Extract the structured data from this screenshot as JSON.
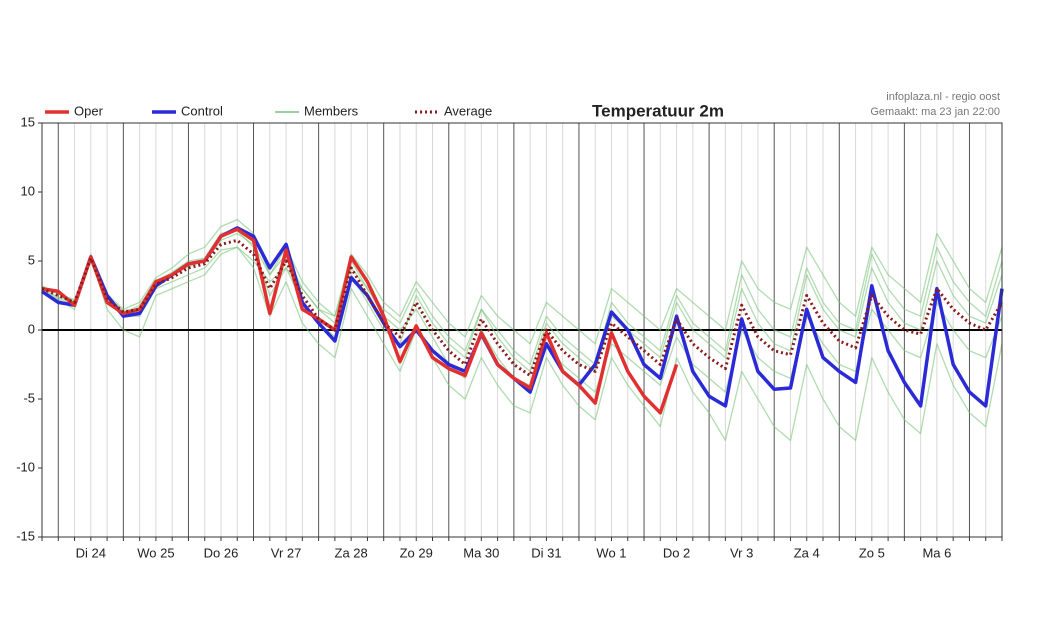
{
  "chart_data": {
    "type": "line",
    "title": "Temperatuur 2m",
    "source": "infoplaza.nl - regio oost",
    "made": "Gemaakt: ma 23 jan 22:00",
    "x": [
      -6,
      0,
      6,
      12,
      18,
      24,
      30,
      36,
      42,
      48,
      54,
      60,
      66,
      72,
      78,
      84,
      90,
      96,
      102,
      108,
      114,
      120,
      126,
      132,
      138,
      144,
      150,
      156,
      162,
      168,
      174,
      180,
      186,
      192,
      198,
      204,
      210,
      216,
      222,
      228,
      234,
      240,
      246,
      252,
      258,
      264,
      270,
      276,
      282,
      288,
      294,
      300,
      306,
      312,
      318,
      324,
      330,
      336,
      342,
      348
    ],
    "xlim": [
      -6,
      348
    ],
    "xticks": [
      {
        "value": 12,
        "label": "Di 24"
      },
      {
        "value": 36,
        "label": "Wo 25"
      },
      {
        "value": 60,
        "label": "Do 26"
      },
      {
        "value": 84,
        "label": "Vr 27"
      },
      {
        "value": 108,
        "label": "Za 28"
      },
      {
        "value": 132,
        "label": "Zo 29"
      },
      {
        "value": 156,
        "label": "Ma 30"
      },
      {
        "value": 180,
        "label": "Di 31"
      },
      {
        "value": 204,
        "label": "Wo 1"
      },
      {
        "value": 228,
        "label": "Do 2"
      },
      {
        "value": 252,
        "label": "Vr 3"
      },
      {
        "value": 276,
        "label": "Za 4"
      },
      {
        "value": 300,
        "label": "Zo 5"
      },
      {
        "value": 324,
        "label": "Ma 6"
      }
    ],
    "ylim": [
      -15,
      15
    ],
    "yticks": [
      15,
      10,
      5,
      0,
      -5,
      -10,
      -15
    ],
    "members": {
      "name": "Members",
      "color": "#7cc47c",
      "values": [
        [
          3.2,
          2.6,
          2.2,
          5,
          2.6,
          1.5,
          2,
          3.8,
          4.5,
          5.5,
          6,
          7.5,
          8,
          7,
          4,
          6,
          3.5,
          2,
          1,
          5.5,
          4,
          2,
          1,
          3.5,
          2,
          0.5,
          -0.5,
          2.5,
          1,
          0,
          -1,
          2,
          1,
          0,
          -1,
          3,
          2,
          1,
          0,
          3,
          2,
          1,
          0,
          5,
          3,
          2,
          1.5,
          6,
          4,
          2,
          1,
          6,
          4,
          3,
          2,
          7,
          5,
          3,
          2,
          6
        ],
        [
          2.8,
          2.2,
          1.5,
          5.3,
          1.5,
          0,
          -0.5,
          2.5,
          3,
          3.5,
          4,
          5.5,
          6,
          4.5,
          1,
          3.5,
          0.5,
          -1,
          -2,
          3,
          1,
          -1,
          -3,
          0,
          -2,
          -4,
          -5,
          -2,
          -4,
          -5.5,
          -6,
          -2,
          -4,
          -5.5,
          -6.5,
          -2,
          -4,
          -5.5,
          -7,
          -2,
          -4.5,
          -6,
          -8,
          -3,
          -5,
          -7,
          -8,
          -2.5,
          -5,
          -7,
          -8,
          -2,
          -4.5,
          -6.5,
          -7.5,
          -1,
          -4,
          -6,
          -7,
          -1
        ],
        [
          3,
          2.4,
          2,
          5.5,
          2.2,
          1.2,
          1.8,
          3.5,
          4.2,
          5,
          5.2,
          7,
          7.2,
          6,
          2.5,
          4.5,
          2,
          0.5,
          -0.5,
          4,
          2,
          0,
          -1,
          2.5,
          0.5,
          -1,
          -2,
          1.5,
          -0.5,
          -2,
          -3,
          0.5,
          -1,
          -2,
          -3,
          1,
          0,
          -1,
          -2,
          2,
          0,
          -1,
          -2,
          3,
          0.5,
          -1,
          -1.5,
          4,
          1.5,
          0,
          -0.5,
          4.5,
          2,
          0.5,
          0,
          5,
          2.5,
          1,
          0.5,
          4
        ],
        [
          2.9,
          2.3,
          1.8,
          5,
          2,
          1,
          1,
          3,
          3.5,
          4,
          4.5,
          5.8,
          6,
          5,
          3.5,
          4.5,
          3,
          1.5,
          0.5,
          4.5,
          3,
          1,
          0,
          1.5,
          -0.5,
          -2.5,
          -3.5,
          0,
          -2,
          -3.5,
          -4,
          -1,
          -2.5,
          -3.5,
          -4.5,
          -1,
          -2,
          -3,
          -4,
          -0.5,
          -2.5,
          -3.5,
          -4.5,
          0,
          -2,
          -3,
          -3.5,
          1,
          -1,
          -2.5,
          -3,
          1.5,
          0,
          -1.5,
          -2,
          2,
          0,
          -1.5,
          -2,
          1
        ],
        [
          3.1,
          2.7,
          2.1,
          5.4,
          2.4,
          1.4,
          1.6,
          3.6,
          4,
          4.6,
          5,
          6.5,
          7,
          6.2,
          4,
          5.5,
          3,
          1.5,
          1,
          5,
          3,
          1.5,
          0.5,
          3,
          1,
          -0.5,
          -1.5,
          1.5,
          0,
          -1.5,
          -2.5,
          1,
          -0.5,
          -1.5,
          -2.5,
          2,
          0.5,
          -0.5,
          -1.5,
          2.5,
          0.5,
          -0.5,
          -1.5,
          4,
          1.5,
          0,
          -0.5,
          4.5,
          2,
          0.5,
          0,
          5.5,
          3,
          1.5,
          1,
          6,
          3.5,
          2,
          1,
          5
        ]
      ]
    },
    "series": [
      {
        "name": "Oper",
        "color": "#e03030",
        "values": [
          3,
          2.8,
          1.8,
          5.3,
          2,
          1.2,
          1.5,
          3.5,
          4,
          4.8,
          5,
          6.8,
          7.3,
          6.5,
          1.2,
          5.8,
          1.5,
          0.8,
          0,
          5.3,
          3.5,
          1,
          -2.3,
          0.3,
          -2,
          -2.8,
          -3.3,
          -0.2,
          -2.5,
          -3.5,
          -4.2,
          -0.2,
          -3,
          -4,
          -5.3,
          -0.2,
          -3,
          -4.8,
          -6,
          -2.5,
          null,
          null,
          null,
          null,
          null,
          null,
          null,
          null,
          null,
          null,
          null,
          null,
          null,
          null,
          null,
          null,
          null,
          null,
          null,
          null
        ]
      },
      {
        "name": "Control",
        "color": "#2a2ad6",
        "values": [
          2.8,
          2,
          1.8,
          5.3,
          2.5,
          1,
          1.2,
          3.2,
          4,
          4.8,
          5,
          6.8,
          7.4,
          6.8,
          4.5,
          6.2,
          2,
          0.5,
          -0.8,
          3.8,
          2.5,
          0.5,
          -1.2,
          0,
          -1.5,
          -2.5,
          -3,
          -0.3,
          -2.5,
          -3.5,
          -4.5,
          -1,
          -3,
          -4,
          -2.5,
          1.3,
          0,
          -2.5,
          -3.5,
          1,
          -3,
          -4.8,
          -5.5,
          0.8,
          -3,
          -4.3,
          -4.2,
          1.5,
          -2,
          -3,
          -3.8,
          3.2,
          -1.5,
          -3.8,
          -5.5,
          3,
          -2.5,
          -4.5,
          -5.5,
          3
        ]
      },
      {
        "name": "Average",
        "color": "#8b1a1a",
        "dash": true,
        "values": [
          3,
          2.5,
          2,
          5.2,
          2.3,
          1.3,
          1.5,
          3.3,
          3.8,
          4.5,
          4.8,
          6.2,
          6.5,
          5.5,
          3,
          5,
          2.5,
          0.8,
          0,
          4.5,
          2.5,
          0.5,
          -0.5,
          2,
          0,
          -1.5,
          -2.5,
          0.8,
          -1,
          -2.5,
          -3.3,
          0,
          -1.5,
          -2.5,
          -3,
          0.5,
          -0.5,
          -1.5,
          -2.5,
          0.8,
          -1,
          -2,
          -2.8,
          1.8,
          -0.5,
          -1.5,
          -1.8,
          2.5,
          0.5,
          -0.8,
          -1.3,
          2.5,
          1,
          0,
          -0.3,
          3,
          1.5,
          0.5,
          0,
          2
        ]
      }
    ]
  }
}
